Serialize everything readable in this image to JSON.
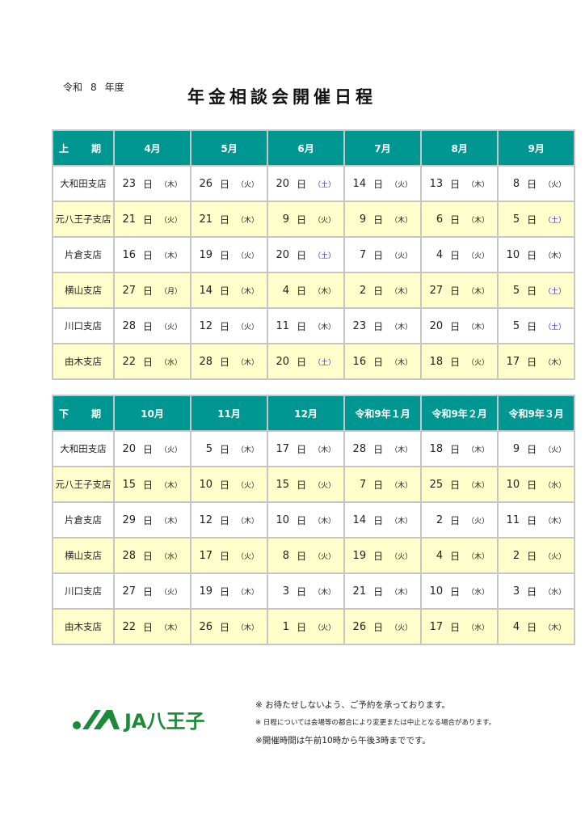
{
  "header": {
    "era": "令和",
    "year": "8",
    "year_suffix": "年度",
    "title": "年金相談会開催日程"
  },
  "tables": [
    {
      "period": "上　期",
      "months": [
        "4月",
        "5月",
        "6月",
        "7月",
        "8月",
        "9月"
      ],
      "rows": [
        {
          "branch": "大和田支店",
          "cells": [
            [
              "23",
              "木"
            ],
            [
              "26",
              "火"
            ],
            [
              "20",
              "土"
            ],
            [
              "14",
              "火"
            ],
            [
              "13",
              "木"
            ],
            [
              "8",
              "火"
            ]
          ]
        },
        {
          "branch": "元八王子支店",
          "cells": [
            [
              "21",
              "火"
            ],
            [
              "21",
              "木"
            ],
            [
              "9",
              "火"
            ],
            [
              "9",
              "木"
            ],
            [
              "6",
              "木"
            ],
            [
              "5",
              "土"
            ]
          ]
        },
        {
          "branch": "片倉支店",
          "cells": [
            [
              "16",
              "木"
            ],
            [
              "19",
              "火"
            ],
            [
              "20",
              "土"
            ],
            [
              "7",
              "火"
            ],
            [
              "4",
              "火"
            ],
            [
              "10",
              "木"
            ]
          ]
        },
        {
          "branch": "横山支店",
          "cells": [
            [
              "27",
              "月"
            ],
            [
              "14",
              "木"
            ],
            [
              "4",
              "木"
            ],
            [
              "2",
              "木"
            ],
            [
              "27",
              "木"
            ],
            [
              "5",
              "土"
            ]
          ]
        },
        {
          "branch": "川口支店",
          "cells": [
            [
              "28",
              "火"
            ],
            [
              "12",
              "火"
            ],
            [
              "11",
              "木"
            ],
            [
              "23",
              "木"
            ],
            [
              "20",
              "木"
            ],
            [
              "5",
              "土"
            ]
          ]
        },
        {
          "branch": "由木支店",
          "cells": [
            [
              "22",
              "水"
            ],
            [
              "28",
              "木"
            ],
            [
              "20",
              "土"
            ],
            [
              "16",
              "木"
            ],
            [
              "18",
              "火"
            ],
            [
              "17",
              "木"
            ]
          ]
        }
      ]
    },
    {
      "period": "下　期",
      "months": [
        "10月",
        "11月",
        "12月",
        "令和9年１月",
        "令和9年２月",
        "令和9年３月"
      ],
      "rows": [
        {
          "branch": "大和田支店",
          "cells": [
            [
              "20",
              "火"
            ],
            [
              "5",
              "木"
            ],
            [
              "17",
              "木"
            ],
            [
              "28",
              "木"
            ],
            [
              "18",
              "木"
            ],
            [
              "9",
              "火"
            ]
          ]
        },
        {
          "branch": "元八王子支店",
          "cells": [
            [
              "15",
              "木"
            ],
            [
              "10",
              "火"
            ],
            [
              "15",
              "火"
            ],
            [
              "7",
              "木"
            ],
            [
              "25",
              "木"
            ],
            [
              "10",
              "水"
            ]
          ]
        },
        {
          "branch": "片倉支店",
          "cells": [
            [
              "29",
              "木"
            ],
            [
              "12",
              "木"
            ],
            [
              "10",
              "木"
            ],
            [
              "14",
              "木"
            ],
            [
              "2",
              "火"
            ],
            [
              "11",
              "木"
            ]
          ]
        },
        {
          "branch": "横山支店",
          "cells": [
            [
              "28",
              "水"
            ],
            [
              "17",
              "火"
            ],
            [
              "8",
              "火"
            ],
            [
              "19",
              "火"
            ],
            [
              "4",
              "木"
            ],
            [
              "2",
              "火"
            ]
          ]
        },
        {
          "branch": "川口支店",
          "cells": [
            [
              "27",
              "火"
            ],
            [
              "19",
              "木"
            ],
            [
              "3",
              "木"
            ],
            [
              "21",
              "木"
            ],
            [
              "10",
              "水"
            ],
            [
              "3",
              "水"
            ]
          ]
        },
        {
          "branch": "由木支店",
          "cells": [
            [
              "22",
              "木"
            ],
            [
              "26",
              "木"
            ],
            [
              "1",
              "火"
            ],
            [
              "26",
              "火"
            ],
            [
              "17",
              "水"
            ],
            [
              "4",
              "木"
            ]
          ]
        }
      ]
    }
  ],
  "day_label": "日",
  "colors": {
    "header": "#009691",
    "alt_row": "#ffffcc",
    "saturday": "#3333cc",
    "logo": "#1d8a3a"
  },
  "logo": {
    "text": "JA八王子"
  },
  "notes": [
    "※ お待たせしないよう、ご予約を承っております。",
    "※ 日程については会場等の都合により変更または中止となる場合があります。",
    "※開催時間は午前10時から午後3時までです。"
  ]
}
